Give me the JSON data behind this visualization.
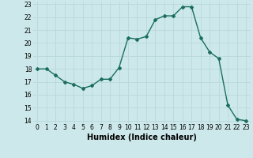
{
  "x": [
    0,
    1,
    2,
    3,
    4,
    5,
    6,
    7,
    8,
    9,
    10,
    11,
    12,
    13,
    14,
    15,
    16,
    17,
    18,
    19,
    20,
    21,
    22,
    23
  ],
  "y": [
    18,
    18,
    17.5,
    17,
    16.8,
    16.5,
    16.7,
    17.2,
    17.2,
    18.1,
    20.4,
    20.3,
    20.5,
    21.8,
    22.1,
    22.1,
    22.8,
    22.8,
    20.4,
    19.3,
    18.8,
    15.2,
    14.1,
    14.0
  ],
  "xlabel": "Humidex (Indice chaleur)",
  "xlim": [
    -0.5,
    23.5
  ],
  "ylim": [
    13.8,
    23.2
  ],
  "yticks": [
    14,
    15,
    16,
    17,
    18,
    19,
    20,
    21,
    22,
    23
  ],
  "xticks": [
    0,
    1,
    2,
    3,
    4,
    5,
    6,
    7,
    8,
    9,
    10,
    11,
    12,
    13,
    14,
    15,
    16,
    17,
    18,
    19,
    20,
    21,
    22,
    23
  ],
  "line_color": "#1a6e5f",
  "marker": "D",
  "marker_size": 2.0,
  "bg_color": "#cde8ea",
  "grid_color": "#b8d8da",
  "line_width": 1.0,
  "tick_fontsize": 5.5,
  "xlabel_fontsize": 7.0
}
